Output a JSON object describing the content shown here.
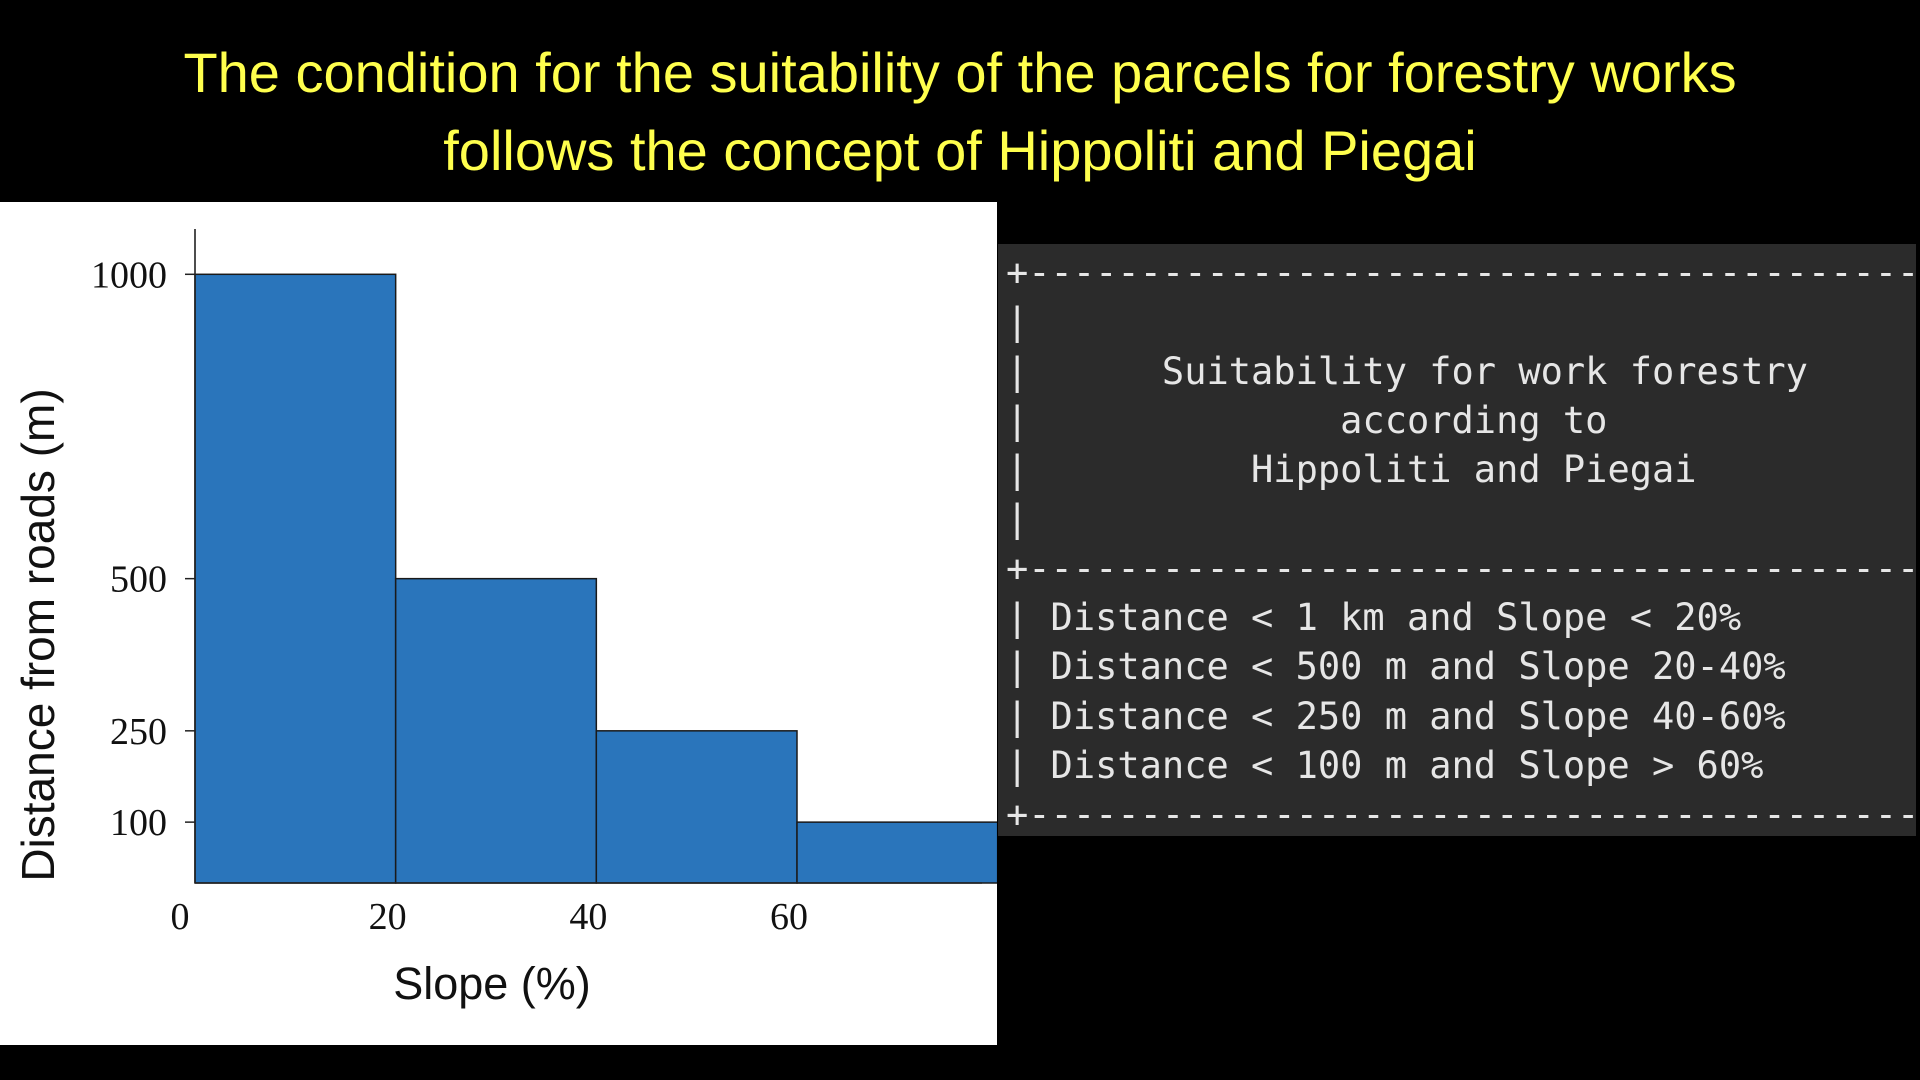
{
  "slide": {
    "title_line1": "The condition for the suitability of the parcels for forestry works",
    "title_line2": "follows the concept of Hippoliti and Piegai",
    "title_color": "#ffff4d",
    "background": "#000000"
  },
  "chart_data": {
    "type": "bar",
    "bins": [
      {
        "x0": 0,
        "x1": 20,
        "value": 1000
      },
      {
        "x0": 20,
        "x1": 40,
        "value": 500
      },
      {
        "x0": 40,
        "x1": 60,
        "value": 250
      },
      {
        "x0": 60,
        "x1": 80,
        "value": 100
      }
    ],
    "x_ticks": [
      "0",
      "20",
      "40",
      "60"
    ],
    "x_tick_values": [
      0,
      20,
      40,
      60
    ],
    "y_ticks": [
      "1000",
      "500",
      "250",
      "100"
    ],
    "y_tick_values": [
      1000,
      500,
      250,
      100
    ],
    "xlabel": "Slope (%)",
    "ylabel": "Distance from roads (m)",
    "xlim": [
      0,
      90
    ],
    "ylim": [
      0,
      1150
    ],
    "bar_color": "#2a75bb",
    "grid": false
  },
  "terminal": {
    "background": "#2b2b2b",
    "text_color": "#e6e6e6",
    "border_line": "+-----------------------------------------+",
    "header_lines": [
      "",
      "Suitability for work forestry",
      "according to",
      "Hippoliti and Piegai",
      ""
    ],
    "rows": [
      "Distance < 1 km and Slope < 20%",
      "Distance < 500 m and Slope 20-40%",
      "Distance < 250 m and Slope 40-60%",
      "Distance < 100 m and Slope > 60%"
    ]
  }
}
